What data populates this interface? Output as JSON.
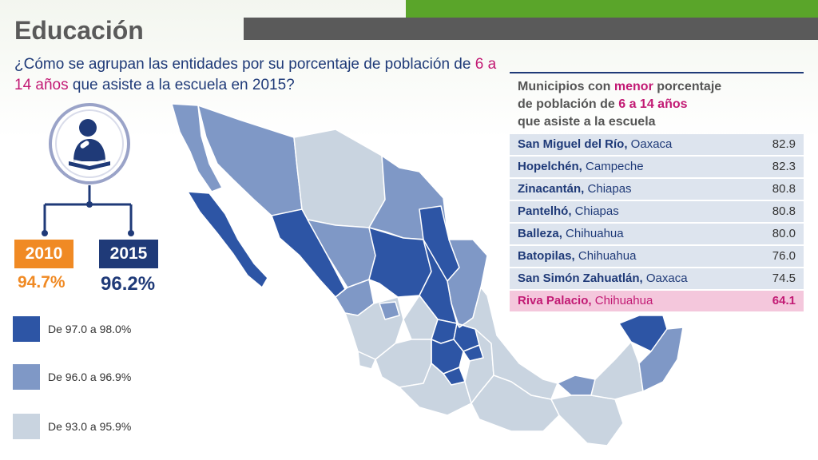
{
  "header": {
    "title": "Educación",
    "question_part1": "¿Cómo se agrupan las entidades por su porcentaje de población de ",
    "question_highlight": "6 a 14 años",
    "question_part2": " que asiste a la escuela en 2015?"
  },
  "years": [
    {
      "label": "2010",
      "value": "94.7%",
      "color": "#f08a24"
    },
    {
      "label": "2015",
      "value": "96.2%",
      "color": "#1f3a78"
    }
  ],
  "legend": [
    {
      "label": "De 97.0 a 98.0%",
      "color": "#2d55a5"
    },
    {
      "label": "De 96.0 a 96.9%",
      "color": "#7f98c6"
    },
    {
      "label": "De 93.0 a 95.9%",
      "color": "#c9d4e0"
    }
  ],
  "table": {
    "heading_line1_pre": "Municipios con ",
    "heading_line1_hl": "menor",
    "heading_line1_post": " porcentaje",
    "heading_line2_pre": "de población de ",
    "heading_line2_hl": "6 a 14 años",
    "heading_line3": "que asiste a la escuela",
    "rows": [
      {
        "municipio": "San Miguel del Río,",
        "estado": " Oaxaca",
        "valor": "82.9"
      },
      {
        "municipio": "Hopelchén,",
        "estado": " Campeche",
        "valor": "82.3"
      },
      {
        "municipio": "Zinacantán,",
        "estado": " Chiapas",
        "valor": "80.8"
      },
      {
        "municipio": "Pantelhó,",
        "estado": " Chiapas",
        "valor": "80.8"
      },
      {
        "municipio": "Balleza,",
        "estado": " Chihuahua",
        "valor": "80.0"
      },
      {
        "municipio": "Batopilas,",
        "estado": " Chihuahua",
        "valor": "76.0"
      },
      {
        "municipio": "San Simón Zahuatlán,",
        "estado": " Oaxaca",
        "valor": "74.5"
      },
      {
        "municipio": "Riva Palacio,",
        "estado": " Chihuahua",
        "valor": "64.1"
      }
    ]
  },
  "colors": {
    "dark": "#2d55a5",
    "mid": "#7f98c6",
    "light": "#c9d4e0",
    "accent_pink": "#c21a74",
    "accent_orange": "#f08a24",
    "navy": "#1f3a78"
  }
}
